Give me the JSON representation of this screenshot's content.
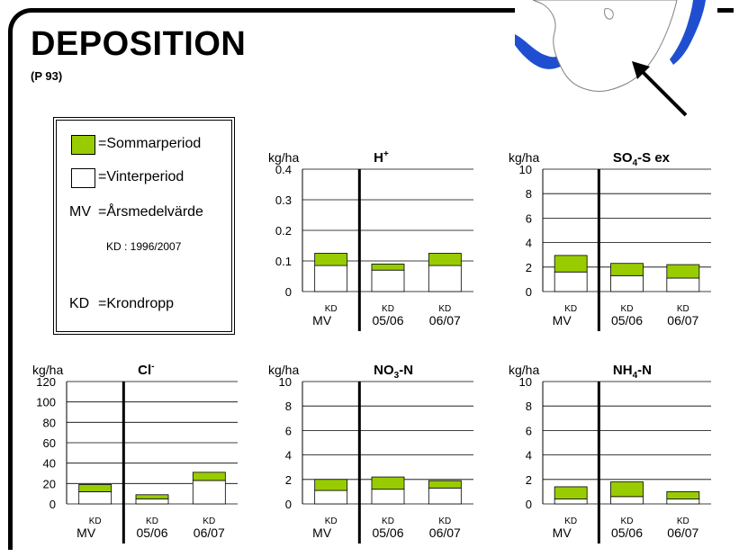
{
  "page": {
    "title": "DEPOSITION",
    "subtitle": "(P 93)"
  },
  "legend": {
    "summer_label": "=Sommarperiod",
    "winter_label": "=Vinterperiod",
    "mv_key": "MV",
    "mv_label": "=Årsmedelvärde",
    "period_note": "KD : 1996/2007",
    "kd_key": "KD",
    "kd_label": "=Krondropp"
  },
  "colors": {
    "summer": "#99cc00",
    "winter": "#ffffff",
    "map_sea": "#1f4fd0",
    "grid": "#000000"
  },
  "icons": [
    "sweden-map-icon",
    "location-arrow-icon"
  ],
  "chart_data": [
    {
      "type": "bar",
      "title_main": "H",
      "title_sup": "+",
      "unit": "kg/ha",
      "categories": [
        "MV",
        "05/06",
        "06/07"
      ],
      "bar_labels": [
        "KD",
        "KD",
        "KD"
      ],
      "ylim": [
        0,
        0.4
      ],
      "yticks": [
        "0",
        "0.1",
        "0.2",
        "0.3",
        "0.4"
      ],
      "series": [
        {
          "name": "Vinterperiod",
          "values": [
            0.085,
            0.07,
            0.085
          ]
        },
        {
          "name": "Sommarperiod",
          "values": [
            0.04,
            0.02,
            0.04
          ]
        }
      ]
    },
    {
      "type": "bar",
      "title_main": "SO",
      "title_sub": "4",
      "title_rest": "-S ex",
      "unit": "kg/ha",
      "categories": [
        "MV",
        "05/06",
        "06/07"
      ],
      "bar_labels": [
        "KD",
        "KD",
        "KD"
      ],
      "ylim": [
        0,
        10
      ],
      "yticks": [
        "0",
        "2",
        "4",
        "6",
        "8",
        "10"
      ],
      "series": [
        {
          "name": "Vinterperiod",
          "values": [
            1.6,
            1.3,
            1.1
          ]
        },
        {
          "name": "Sommarperiod",
          "values": [
            1.35,
            1.0,
            1.1
          ]
        }
      ]
    },
    {
      "type": "bar",
      "title_main": "Cl",
      "title_sup": "-",
      "unit": "kg/ha",
      "categories": [
        "MV",
        "05/06",
        "06/07"
      ],
      "bar_labels": [
        "KD",
        "KD",
        "KD"
      ],
      "ylim": [
        0,
        120
      ],
      "yticks": [
        "0",
        "20",
        "40",
        "60",
        "80",
        "100",
        "120"
      ],
      "series": [
        {
          "name": "Vinterperiod",
          "values": [
            12,
            5,
            23
          ]
        },
        {
          "name": "Sommarperiod",
          "values": [
            7,
            4,
            8
          ]
        }
      ]
    },
    {
      "type": "bar",
      "title_main": "NO",
      "title_sub": "3",
      "title_rest": "-N",
      "unit": "kg/ha",
      "categories": [
        "MV",
        "05/06",
        "06/07"
      ],
      "bar_labels": [
        "KD",
        "KD",
        "KD"
      ],
      "ylim": [
        0,
        10
      ],
      "yticks": [
        "0",
        "2",
        "4",
        "6",
        "8",
        "10"
      ],
      "series": [
        {
          "name": "Vinterperiod",
          "values": [
            1.1,
            1.2,
            1.3
          ]
        },
        {
          "name": "Sommarperiod",
          "values": [
            0.9,
            1.0,
            0.6
          ]
        }
      ]
    },
    {
      "type": "bar",
      "title_main": "NH",
      "title_sub": "4",
      "title_rest": "-N",
      "unit": "kg/ha",
      "categories": [
        "MV",
        "05/06",
        "06/07"
      ],
      "bar_labels": [
        "KD",
        "KD",
        "KD"
      ],
      "ylim": [
        0,
        10
      ],
      "yticks": [
        "0",
        "2",
        "4",
        "6",
        "8",
        "10"
      ],
      "series": [
        {
          "name": "Vinterperiod",
          "values": [
            0.4,
            0.6,
            0.4
          ]
        },
        {
          "name": "Sommarperiod",
          "values": [
            1.0,
            1.2,
            0.6
          ]
        }
      ]
    }
  ]
}
